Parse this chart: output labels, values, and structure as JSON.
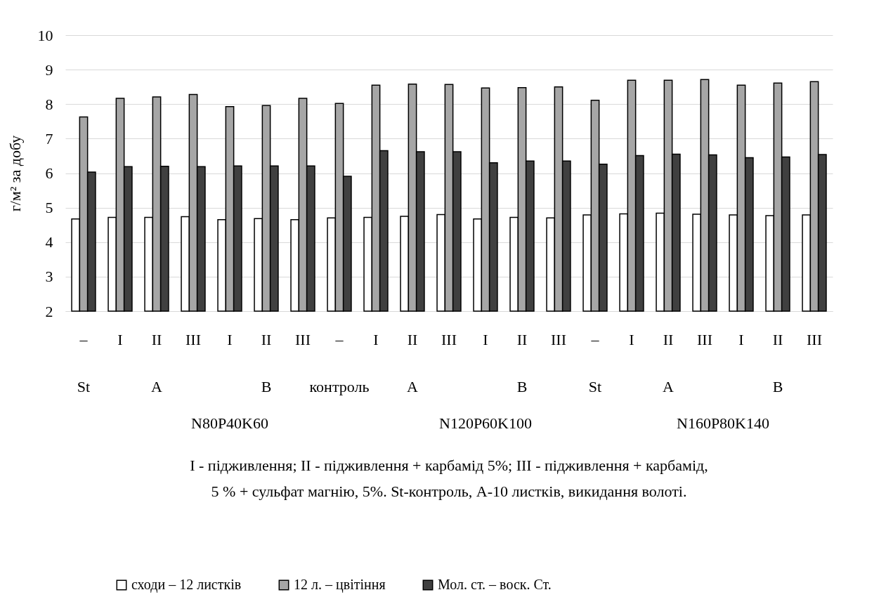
{
  "chart_data": {
    "type": "bar",
    "ylabel": "г/м² за добу",
    "categories": [
      "–",
      "I",
      "II",
      "III",
      "I",
      "II",
      "III",
      "–",
      "I",
      "II",
      "III",
      "I",
      "II",
      "III",
      "–",
      "I",
      "II",
      "III",
      "I",
      "II",
      "III"
    ],
    "series": [
      {
        "name": "сходи – 12 листків",
        "color": "#ffffff",
        "values": [
          4.67,
          4.72,
          4.72,
          4.74,
          4.65,
          4.68,
          4.65,
          4.7,
          4.72,
          4.75,
          4.8,
          4.67,
          4.72,
          4.7,
          4.79,
          4.82,
          4.84,
          4.81,
          4.79,
          4.77,
          4.79
        ]
      },
      {
        "name": "12 л. – цвітіння",
        "color": "#a6a6a6",
        "values": [
          7.63,
          8.17,
          8.21,
          8.28,
          7.93,
          7.96,
          8.17,
          8.02,
          8.55,
          8.58,
          8.57,
          8.47,
          8.48,
          8.5,
          8.11,
          8.69,
          8.69,
          8.71,
          8.55,
          8.61,
          8.65
        ]
      },
      {
        "name": "Мол. ст. – воск. Ст.",
        "color": "#404040",
        "values": [
          6.03,
          6.19,
          6.2,
          6.19,
          6.21,
          6.21,
          6.21,
          5.91,
          6.65,
          6.62,
          6.62,
          6.3,
          6.35,
          6.35,
          6.26,
          6.51,
          6.55,
          6.53,
          6.45,
          6.47,
          6.54
        ]
      }
    ],
    "ylim": [
      2,
      10
    ],
    "yticks": [
      2,
      3,
      4,
      5,
      6,
      7,
      8,
      9,
      10
    ],
    "grid": "y",
    "legend": "bottom",
    "annotations": [
      "St",
      "A",
      "B",
      "контроль",
      "A",
      "B",
      "St",
      "A",
      "B",
      "N80P40K60",
      "N120P60K100",
      "N160P80K140",
      "I - підживлення; II - підживлення + карбамід 5%; III - підживлення + карбамід, 5 % + сульфат магнію, 5%. St-контроль, A-10 листків, викидання волоті."
    ]
  }
}
